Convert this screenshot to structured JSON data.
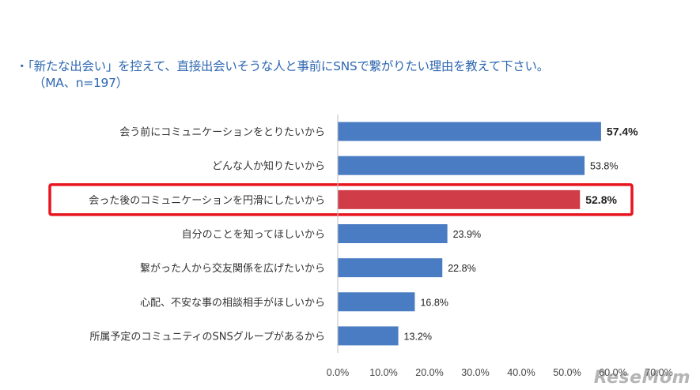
{
  "header": {
    "question_line1": "・「新たな出会い」を控えて、直接出会いそうな人と事前にSNSで繋がりたい理由を教えて下さい。",
    "question_line2": "（MA、n=197）"
  },
  "chart_data": {
    "type": "bar",
    "orientation": "horizontal",
    "title": "「新たな出会い」を控えて、直接出会いそうな人と事前にSNSで繋がりたい理由を教えて下さい。",
    "subtitle": "（MA、n=197）",
    "categories": [
      "会う前にコミュニケーションをとりたいから",
      "どんな人か知りたいから",
      "会った後のコミュニケーションを円滑にしたいから",
      "自分のことを知ってほしいから",
      "繋がった人から交友関係を広げたいから",
      "心配、不安な事の相談相手がほしいから",
      "所属予定のコミュニティのSNSグループがあるから"
    ],
    "values": [
      57.4,
      53.8,
      52.8,
      23.9,
      22.8,
      16.8,
      13.2
    ],
    "value_labels": [
      "57.4%",
      "53.8%",
      "52.8%",
      "23.9%",
      "22.8%",
      "16.8%",
      "13.2%"
    ],
    "bold_labels": [
      true,
      false,
      true,
      false,
      false,
      false,
      false
    ],
    "highlight_index": 2,
    "xlim": [
      0,
      70
    ],
    "xticks": [
      0,
      10,
      20,
      30,
      40,
      50,
      60,
      70
    ],
    "xtick_labels": [
      "0.0%",
      "10.0%",
      "20.0%",
      "30.0%",
      "40.0%",
      "50.0%",
      "60.0%",
      "70.0%"
    ],
    "xlabel": "",
    "ylabel": "",
    "grid": false,
    "colors": {
      "bar": "#4a7cc3",
      "highlight_bar": "#d03c47",
      "highlight_box": "#e8141e"
    }
  },
  "watermark": "ReseMom"
}
